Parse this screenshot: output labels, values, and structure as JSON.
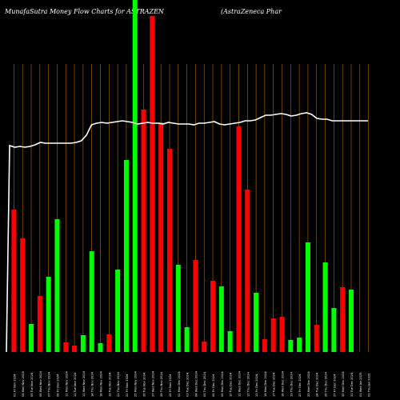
{
  "header": {
    "title_left": "MunafaSutra  Money Flow  Charts for ASTRAZEN",
    "title_right": "(AstraZeneca  Phar"
  },
  "chart_data": {
    "type": "bar",
    "title": "MunafaSutra  Money Flow  Charts for ASTRAZEN",
    "subtitle": "(AstraZeneca  Phar",
    "grid": "vertical",
    "colors": {
      "up": "#00ff00",
      "down": "#ff0000",
      "grid": "#b86b00",
      "line": "#ffffff",
      "background": "#000000"
    },
    "categories": [
      "01 Fri Nov 2024",
      "04 Mon Nov 2024",
      "05 Tue Nov 2024",
      "06 Wed Nov 2024",
      "07 Thu Nov 2024",
      "08 Fri Nov 2024",
      "11 Mon Nov 2024",
      "12 Tue Nov 2024",
      "13 Wed Nov 2024",
      "14 Thu Nov 2024",
      "18 Mon Nov 2024",
      "19 Tue Nov 2024",
      "21 Thu Nov 2024",
      "22 Fri Nov 2024",
      "25 Mon Nov 2024",
      "26 Tue Nov 2024",
      "27 Wed Nov 2024",
      "28 Thu Nov 2024",
      "29 Fri Nov 2024",
      "02 Mon Dec 2024",
      "03 Tue Dec 2024",
      "04 Wed Dec 2024",
      "05 Thu Dec 2024",
      "06 Fri Dec 2024",
      "09 Mon Dec 2024",
      "10 Tue Dec 2024",
      "11 Wed Dec 2024",
      "12 Thu Dec 2024",
      "13 Fri Dec 2024",
      "16 Mon Dec 2024",
      "17 Tue Dec 2024",
      "18 Wed Dec 2024",
      "19 Thu Dec 2024",
      "20 Fri Dec 2024",
      "23 Mon Dec 2024",
      "24 Tue Dec 2024",
      "26 Thu Dec 2024",
      "27 Fri Dec 2024",
      "30 Mon Dec 2024",
      "31 Tue Dec 2024",
      "01 Wed Jan 2025",
      "02 Thu Jan 2025"
    ],
    "values": [
      178,
      142,
      35,
      70,
      94,
      166,
      12,
      8,
      21,
      126,
      11,
      22,
      103,
      240,
      440,
      303,
      420,
      287,
      254,
      109,
      31,
      115,
      13,
      89,
      82,
      26,
      282,
      203,
      74,
      16,
      42,
      44,
      15,
      18,
      137,
      34,
      112,
      55,
      81,
      78,
      0,
      0
    ],
    "directions": [
      "down",
      "down",
      "green",
      "down",
      "green",
      "green",
      "down",
      "down",
      "green",
      "green",
      "green",
      "down",
      "green",
      "green",
      "green",
      "down",
      "down",
      "down",
      "down",
      "green",
      "green",
      "down",
      "down",
      "down",
      "green",
      "green",
      "down",
      "down",
      "green",
      "down",
      "down",
      "down",
      "green",
      "green",
      "green",
      "down",
      "green",
      "green",
      "down",
      "green",
      "",
      ""
    ],
    "line": [
      258,
      256,
      257,
      256,
      257,
      259,
      262,
      261,
      261,
      261,
      261,
      261,
      261,
      262,
      264,
      271,
      284,
      286,
      287,
      286,
      287,
      288,
      289,
      288,
      287,
      285,
      286,
      287,
      286,
      286,
      285,
      287,
      286,
      285,
      285,
      285,
      284,
      286,
      286,
      287,
      288,
      285,
      284,
      285,
      286,
      287,
      289,
      289,
      290,
      293,
      296,
      296,
      297,
      298,
      297,
      295,
      296,
      298,
      299,
      297,
      292,
      291,
      291,
      289,
      289,
      289,
      289,
      289,
      289,
      289,
      289
    ]
  }
}
